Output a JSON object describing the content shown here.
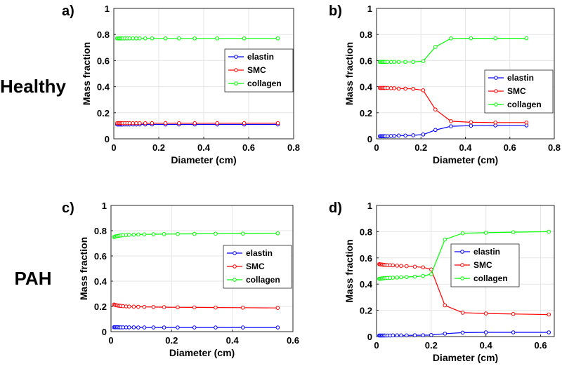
{
  "row_labels": [
    "Healthy",
    "PAH"
  ],
  "series_colors": {
    "elastin": "#0000ff",
    "SMC": "#ff0000",
    "collagen": "#00ff00"
  },
  "chart_data": [
    {
      "panel": "a)",
      "type": "line",
      "xlabel": "Diameter (cm)",
      "ylabel": "Mass fraction",
      "xlim": [
        0,
        0.8
      ],
      "ylim": [
        0,
        1
      ],
      "xticks": [
        "0",
        "0.2",
        "0.4",
        "0.6",
        "0.8"
      ],
      "yticks": [
        "0",
        "0.2",
        "0.4",
        "0.6",
        "0.8",
        "1"
      ],
      "legend": [
        "elastin",
        "SMC",
        "collagen"
      ],
      "x": [
        0.015,
        0.02,
        0.025,
        0.03,
        0.035,
        0.04,
        0.05,
        0.06,
        0.07,
        0.085,
        0.1,
        0.115,
        0.14,
        0.17,
        0.23,
        0.29,
        0.36,
        0.46,
        0.58,
        0.73
      ],
      "series": [
        {
          "name": "elastin",
          "values": [
            0.11,
            0.11,
            0.11,
            0.11,
            0.11,
            0.11,
            0.11,
            0.11,
            0.11,
            0.11,
            0.11,
            0.11,
            0.11,
            0.11,
            0.11,
            0.11,
            0.11,
            0.11,
            0.11,
            0.11
          ]
        },
        {
          "name": "SMC",
          "values": [
            0.12,
            0.12,
            0.12,
            0.12,
            0.12,
            0.12,
            0.12,
            0.12,
            0.12,
            0.12,
            0.12,
            0.12,
            0.12,
            0.12,
            0.12,
            0.12,
            0.12,
            0.12,
            0.12,
            0.12
          ]
        },
        {
          "name": "collagen",
          "values": [
            0.77,
            0.77,
            0.77,
            0.77,
            0.77,
            0.77,
            0.77,
            0.77,
            0.77,
            0.77,
            0.77,
            0.77,
            0.77,
            0.77,
            0.77,
            0.77,
            0.77,
            0.77,
            0.77,
            0.77
          ]
        }
      ]
    },
    {
      "panel": "b)",
      "type": "line",
      "xlabel": "Diameter (cm)",
      "ylabel": "Mass fraction",
      "xlim": [
        0,
        0.8
      ],
      "ylim": [
        0,
        1
      ],
      "xticks": [
        "0",
        "0.2",
        "0.4",
        "0.6",
        "0.8"
      ],
      "yticks": [
        "0",
        "0.2",
        "0.4",
        "0.6",
        "0.8",
        "1"
      ],
      "legend": [
        "elastin",
        "SMC",
        "collagen"
      ],
      "x": [
        0.015,
        0.02,
        0.025,
        0.03,
        0.035,
        0.04,
        0.05,
        0.065,
        0.08,
        0.1,
        0.13,
        0.165,
        0.21,
        0.265,
        0.335,
        0.425,
        0.535,
        0.675
      ],
      "series": [
        {
          "name": "elastin",
          "values": [
            0.02,
            0.02,
            0.02,
            0.02,
            0.02,
            0.02,
            0.02,
            0.022,
            0.022,
            0.025,
            0.025,
            0.027,
            0.033,
            0.068,
            0.096,
            0.101,
            0.103,
            0.103
          ]
        },
        {
          "name": "SMC",
          "values": [
            0.39,
            0.39,
            0.39,
            0.39,
            0.39,
            0.39,
            0.39,
            0.388,
            0.388,
            0.385,
            0.385,
            0.383,
            0.372,
            0.225,
            0.135,
            0.127,
            0.125,
            0.125
          ]
        },
        {
          "name": "collagen",
          "values": [
            0.59,
            0.59,
            0.59,
            0.59,
            0.59,
            0.59,
            0.59,
            0.59,
            0.59,
            0.59,
            0.59,
            0.59,
            0.595,
            0.705,
            0.77,
            0.771,
            0.771,
            0.771
          ]
        }
      ]
    },
    {
      "panel": "c)",
      "type": "line",
      "xlabel": "Diameter (cm)",
      "ylabel": "Mass fraction",
      "xlim": [
        0,
        0.6
      ],
      "ylim": [
        0,
        1
      ],
      "xticks": [
        "0",
        "0.2",
        "0.4",
        "0.6"
      ],
      "yticks": [
        "0",
        "0.2",
        "0.4",
        "0.6",
        "0.8",
        "1"
      ],
      "legend": [
        "elastin",
        "SMC",
        "collagen"
      ],
      "x": [
        0.01,
        0.013,
        0.016,
        0.02,
        0.024,
        0.028,
        0.033,
        0.04,
        0.05,
        0.06,
        0.075,
        0.09,
        0.11,
        0.14,
        0.175,
        0.22,
        0.275,
        0.345,
        0.435,
        0.55
      ],
      "series": [
        {
          "name": "elastin",
          "values": [
            0.035,
            0.035,
            0.035,
            0.035,
            0.035,
            0.034,
            0.034,
            0.034,
            0.034,
            0.034,
            0.034,
            0.033,
            0.033,
            0.033,
            0.033,
            0.033,
            0.033,
            0.033,
            0.033,
            0.033
          ]
        },
        {
          "name": "SMC",
          "values": [
            0.215,
            0.212,
            0.21,
            0.208,
            0.206,
            0.205,
            0.204,
            0.202,
            0.2,
            0.199,
            0.198,
            0.197,
            0.196,
            0.195,
            0.194,
            0.193,
            0.192,
            0.191,
            0.19,
            0.188
          ]
        },
        {
          "name": "collagen",
          "values": [
            0.75,
            0.753,
            0.755,
            0.757,
            0.759,
            0.761,
            0.762,
            0.764,
            0.766,
            0.767,
            0.768,
            0.77,
            0.771,
            0.772,
            0.773,
            0.774,
            0.775,
            0.776,
            0.777,
            0.779
          ]
        }
      ]
    },
    {
      "panel": "d)",
      "type": "line",
      "xlabel": "Diameter (cm)",
      "ylabel": "Mass fraction",
      "xlim": [
        0,
        0.65
      ],
      "ylim": [
        0,
        1
      ],
      "xticks": [
        "0",
        "0.2",
        "0.4",
        "0.6"
      ],
      "yticks": [
        "0",
        "0.2",
        "0.4",
        "0.6",
        "0.8",
        "1"
      ],
      "legend": [
        "elastin",
        "SMC",
        "collagen"
      ],
      "x": [
        0.01,
        0.013,
        0.016,
        0.02,
        0.024,
        0.028,
        0.033,
        0.04,
        0.05,
        0.06,
        0.075,
        0.09,
        0.11,
        0.14,
        0.17,
        0.2,
        0.25,
        0.315,
        0.4,
        0.5,
        0.63
      ],
      "series": [
        {
          "name": "elastin",
          "values": [
            0.008,
            0.008,
            0.008,
            0.008,
            0.008,
            0.008,
            0.008,
            0.008,
            0.008,
            0.009,
            0.009,
            0.009,
            0.009,
            0.01,
            0.01,
            0.012,
            0.022,
            0.03,
            0.032,
            0.032,
            0.032
          ]
        },
        {
          "name": "SMC",
          "values": [
            0.552,
            0.551,
            0.55,
            0.549,
            0.548,
            0.547,
            0.546,
            0.545,
            0.544,
            0.543,
            0.541,
            0.539,
            0.537,
            0.533,
            0.528,
            0.512,
            0.238,
            0.182,
            0.176,
            0.172,
            0.168
          ]
        },
        {
          "name": "collagen",
          "values": [
            0.44,
            0.441,
            0.442,
            0.443,
            0.444,
            0.445,
            0.446,
            0.447,
            0.448,
            0.449,
            0.45,
            0.452,
            0.454,
            0.457,
            0.462,
            0.476,
            0.74,
            0.788,
            0.792,
            0.796,
            0.8
          ]
        }
      ]
    }
  ]
}
